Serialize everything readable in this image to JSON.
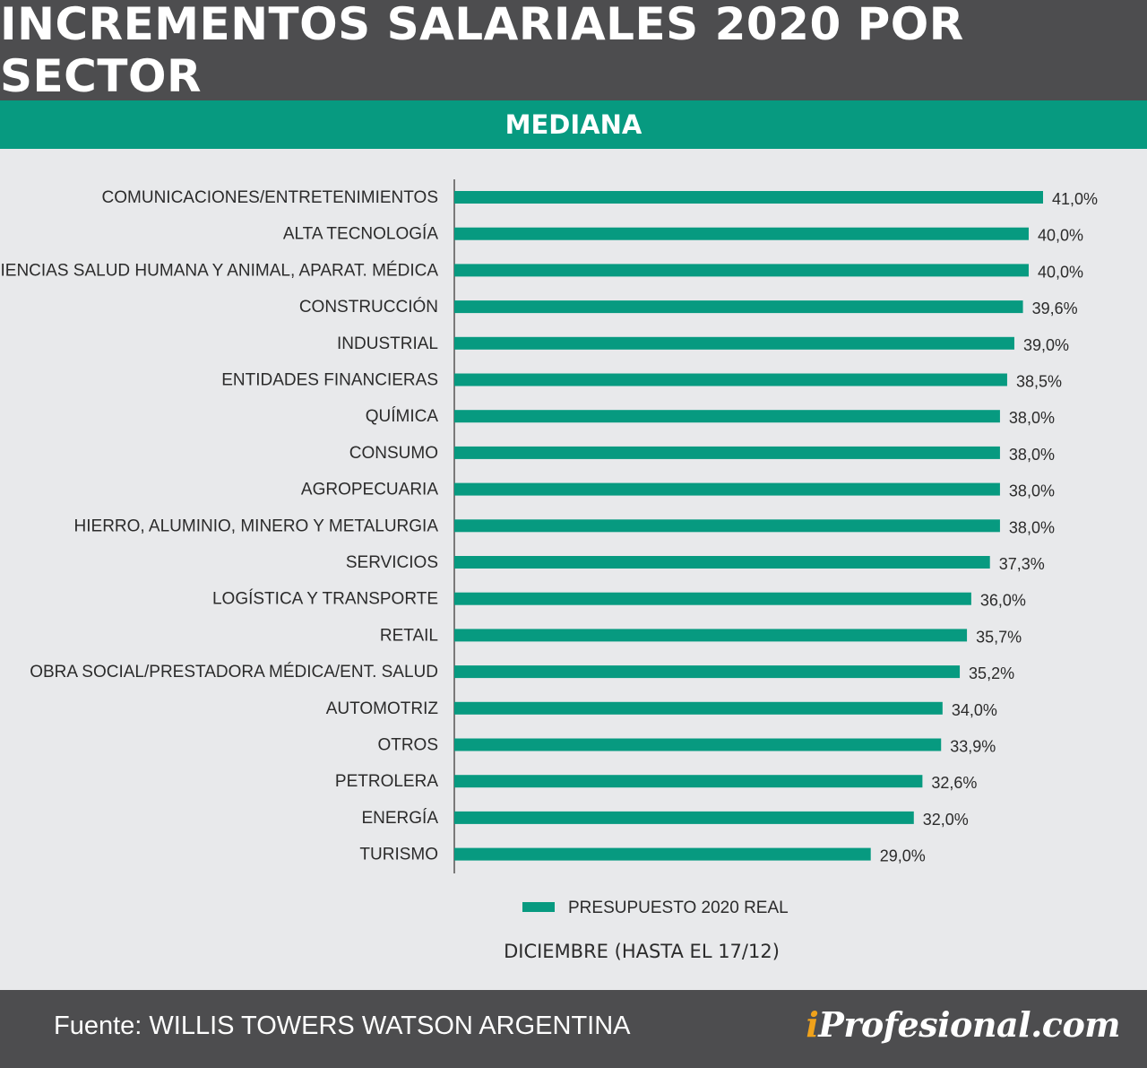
{
  "header": {
    "title": "INCREMENTOS SALARIALES 2020 POR SECTOR"
  },
  "subheader": {
    "label": "MEDIANA"
  },
  "chart_data": {
    "type": "bar",
    "orientation": "horizontal",
    "title": "",
    "xlabel": "DICIEMBRE (HASTA EL 17/12)",
    "ylabel": "",
    "xlim": [
      0,
      41
    ],
    "grid": false,
    "legend": {
      "placement": "bottom-center",
      "entries": [
        "PRESUPUESTO 2020 REAL"
      ]
    },
    "bar_color": "#079a80",
    "categories": [
      "COMUNICACIONES/ENTRETENIMIENTOS",
      "ALTA TECNOLOGÍA",
      "CIENCIAS SALUD HUMANA Y ANIMAL, APARAT. MÉDICA",
      "CONSTRUCCIÓN",
      "INDUSTRIAL",
      "ENTIDADES FINANCIERAS",
      "QUÍMICA",
      "CONSUMO",
      "AGROPECUARIA",
      "HIERRO, ALUMINIO, MINERO Y METALURGIA",
      "SERVICIOS",
      "LOGÍSTICA Y TRANSPORTE",
      "RETAIL",
      "OBRA SOCIAL/PRESTADORA MÉDICA/ENT. SALUD",
      "AUTOMOTRIZ",
      "OTROS",
      "PETROLERA",
      "ENERGÍA",
      "TURISMO"
    ],
    "series": [
      {
        "name": "PRESUPUESTO 2020 REAL",
        "values": [
          41.0,
          40.0,
          40.0,
          39.6,
          39.0,
          38.5,
          38.0,
          38.0,
          38.0,
          38.0,
          37.3,
          36.0,
          35.7,
          35.2,
          34.0,
          33.9,
          32.6,
          32.0,
          29.0
        ]
      }
    ],
    "value_labels": [
      "41,0%",
      "40,0%",
      "40,0%",
      "39,6%",
      "39,0%",
      "38,5%",
      "38,0%",
      "38,0%",
      "38,0%",
      "38,0%",
      "37,3%",
      "36,0%",
      "35,7%",
      "35,2%",
      "34,0%",
      "33,9%",
      "32,6%",
      "32,0%",
      "29,0%"
    ]
  },
  "footer": {
    "source": "Fuente: WILLIS TOWERS WATSON ARGENTINA",
    "brand_i": "i",
    "brand_rest": "Profesional.com"
  }
}
